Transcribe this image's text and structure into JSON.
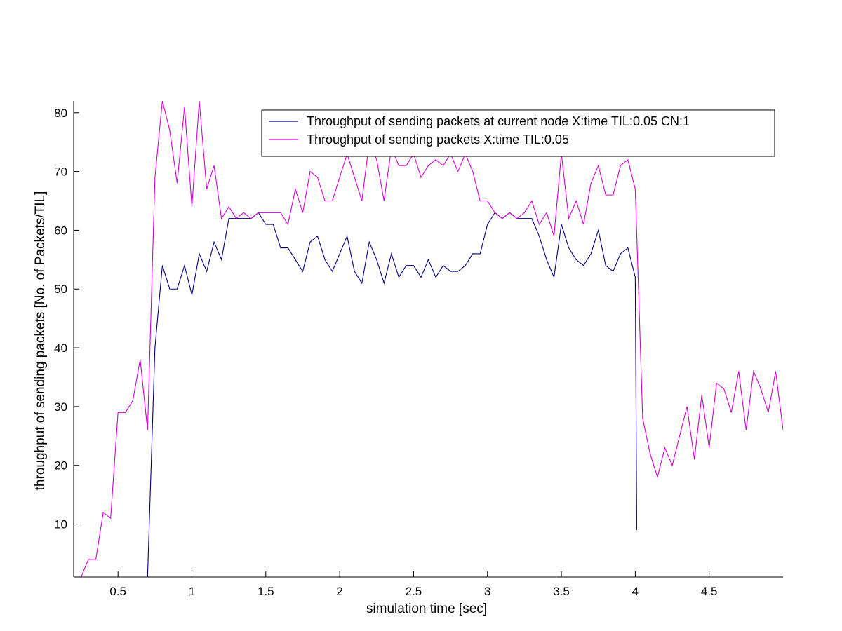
{
  "chart_data": {
    "type": "line",
    "title": "",
    "xlabel": "simulation time [sec]",
    "ylabel": "throughput of sending packets [No. of Packets/TIL]",
    "xlim": [
      0.2,
      5.0
    ],
    "ylim": [
      1,
      82
    ],
    "x_ticks": [
      0.5,
      1,
      1.5,
      2,
      2.5,
      3,
      3.5,
      4,
      4.5
    ],
    "y_ticks": [
      10,
      20,
      30,
      40,
      50,
      60,
      70,
      80
    ],
    "grid": false,
    "legend_position": "top-right",
    "series": [
      {
        "name": "Throughput of sending packets at current node X:time TIL:0.05 CN:1",
        "color": "#00007f",
        "points": [
          [
            0.7,
            1
          ],
          [
            0.75,
            40
          ],
          [
            0.8,
            54
          ],
          [
            0.85,
            50
          ],
          [
            0.9,
            50
          ],
          [
            0.95,
            54
          ],
          [
            1.0,
            49
          ],
          [
            1.05,
            56
          ],
          [
            1.1,
            53
          ],
          [
            1.15,
            58
          ],
          [
            1.2,
            55
          ],
          [
            1.25,
            62
          ],
          [
            1.3,
            62
          ],
          [
            1.35,
            62
          ],
          [
            1.4,
            62
          ],
          [
            1.45,
            63
          ],
          [
            1.5,
            61
          ],
          [
            1.55,
            61
          ],
          [
            1.6,
            57
          ],
          [
            1.65,
            57
          ],
          [
            1.7,
            55
          ],
          [
            1.75,
            53
          ],
          [
            1.8,
            58
          ],
          [
            1.85,
            59
          ],
          [
            1.9,
            55
          ],
          [
            1.95,
            53
          ],
          [
            2.0,
            56
          ],
          [
            2.05,
            59
          ],
          [
            2.1,
            53
          ],
          [
            2.15,
            51
          ],
          [
            2.2,
            58
          ],
          [
            2.25,
            55
          ],
          [
            2.3,
            51
          ],
          [
            2.35,
            56
          ],
          [
            2.4,
            52
          ],
          [
            2.45,
            54
          ],
          [
            2.5,
            54
          ],
          [
            2.55,
            52
          ],
          [
            2.6,
            55
          ],
          [
            2.65,
            52
          ],
          [
            2.7,
            54
          ],
          [
            2.75,
            53
          ],
          [
            2.8,
            53
          ],
          [
            2.85,
            54
          ],
          [
            2.9,
            56
          ],
          [
            2.95,
            56
          ],
          [
            3.0,
            61
          ],
          [
            3.05,
            63
          ],
          [
            3.1,
            62
          ],
          [
            3.15,
            63
          ],
          [
            3.2,
            62
          ],
          [
            3.25,
            62
          ],
          [
            3.3,
            62
          ],
          [
            3.35,
            59
          ],
          [
            3.4,
            55
          ],
          [
            3.45,
            52
          ],
          [
            3.5,
            61
          ],
          [
            3.55,
            57
          ],
          [
            3.6,
            55
          ],
          [
            3.65,
            54
          ],
          [
            3.7,
            56
          ],
          [
            3.75,
            60
          ],
          [
            3.8,
            54
          ],
          [
            3.85,
            53
          ],
          [
            3.9,
            56
          ],
          [
            3.95,
            57
          ],
          [
            4.0,
            52
          ],
          [
            4.01,
            9
          ]
        ]
      },
      {
        "name": "Throughput of sending packets X:time TIL:0.05",
        "color": "#d400d4",
        "points": [
          [
            0.2,
            1
          ],
          [
            0.25,
            1
          ],
          [
            0.3,
            4
          ],
          [
            0.35,
            4
          ],
          [
            0.4,
            12
          ],
          [
            0.45,
            11
          ],
          [
            0.5,
            29
          ],
          [
            0.55,
            29
          ],
          [
            0.6,
            31
          ],
          [
            0.65,
            38
          ],
          [
            0.7,
            26
          ],
          [
            0.75,
            69
          ],
          [
            0.8,
            82
          ],
          [
            0.85,
            77
          ],
          [
            0.9,
            68
          ],
          [
            0.95,
            81
          ],
          [
            1.0,
            64
          ],
          [
            1.05,
            82
          ],
          [
            1.1,
            67
          ],
          [
            1.15,
            71
          ],
          [
            1.2,
            62
          ],
          [
            1.25,
            64
          ],
          [
            1.3,
            62
          ],
          [
            1.35,
            63
          ],
          [
            1.4,
            62
          ],
          [
            1.45,
            63
          ],
          [
            1.5,
            63
          ],
          [
            1.55,
            63
          ],
          [
            1.6,
            63
          ],
          [
            1.65,
            61
          ],
          [
            1.7,
            67
          ],
          [
            1.75,
            63
          ],
          [
            1.8,
            70
          ],
          [
            1.85,
            69
          ],
          [
            1.9,
            65
          ],
          [
            1.95,
            65
          ],
          [
            2.0,
            69
          ],
          [
            2.05,
            73
          ],
          [
            2.1,
            69
          ],
          [
            2.15,
            65
          ],
          [
            2.2,
            75
          ],
          [
            2.25,
            72
          ],
          [
            2.3,
            65
          ],
          [
            2.35,
            74
          ],
          [
            2.4,
            71
          ],
          [
            2.45,
            71
          ],
          [
            2.5,
            73
          ],
          [
            2.55,
            69
          ],
          [
            2.6,
            71
          ],
          [
            2.65,
            72
          ],
          [
            2.7,
            71
          ],
          [
            2.75,
            73
          ],
          [
            2.8,
            70
          ],
          [
            2.85,
            73
          ],
          [
            2.9,
            70
          ],
          [
            2.95,
            65
          ],
          [
            3.0,
            65
          ],
          [
            3.05,
            63
          ],
          [
            3.1,
            62
          ],
          [
            3.15,
            63
          ],
          [
            3.2,
            62
          ],
          [
            3.25,
            63
          ],
          [
            3.3,
            65
          ],
          [
            3.35,
            61
          ],
          [
            3.4,
            63
          ],
          [
            3.45,
            59
          ],
          [
            3.5,
            73
          ],
          [
            3.55,
            62
          ],
          [
            3.6,
            65
          ],
          [
            3.65,
            61
          ],
          [
            3.7,
            68
          ],
          [
            3.75,
            71
          ],
          [
            3.8,
            66
          ],
          [
            3.85,
            66
          ],
          [
            3.9,
            71
          ],
          [
            3.95,
            72
          ],
          [
            4.0,
            67
          ],
          [
            4.05,
            28
          ],
          [
            4.1,
            22
          ],
          [
            4.15,
            18
          ],
          [
            4.2,
            23
          ],
          [
            4.25,
            20
          ],
          [
            4.3,
            25
          ],
          [
            4.35,
            30
          ],
          [
            4.4,
            21
          ],
          [
            4.45,
            32
          ],
          [
            4.5,
            23
          ],
          [
            4.55,
            34
          ],
          [
            4.6,
            33
          ],
          [
            4.65,
            29
          ],
          [
            4.7,
            36
          ],
          [
            4.75,
            26
          ],
          [
            4.8,
            36
          ],
          [
            4.85,
            33
          ],
          [
            4.9,
            29
          ],
          [
            4.95,
            36
          ],
          [
            5.0,
            26
          ]
        ]
      }
    ]
  }
}
